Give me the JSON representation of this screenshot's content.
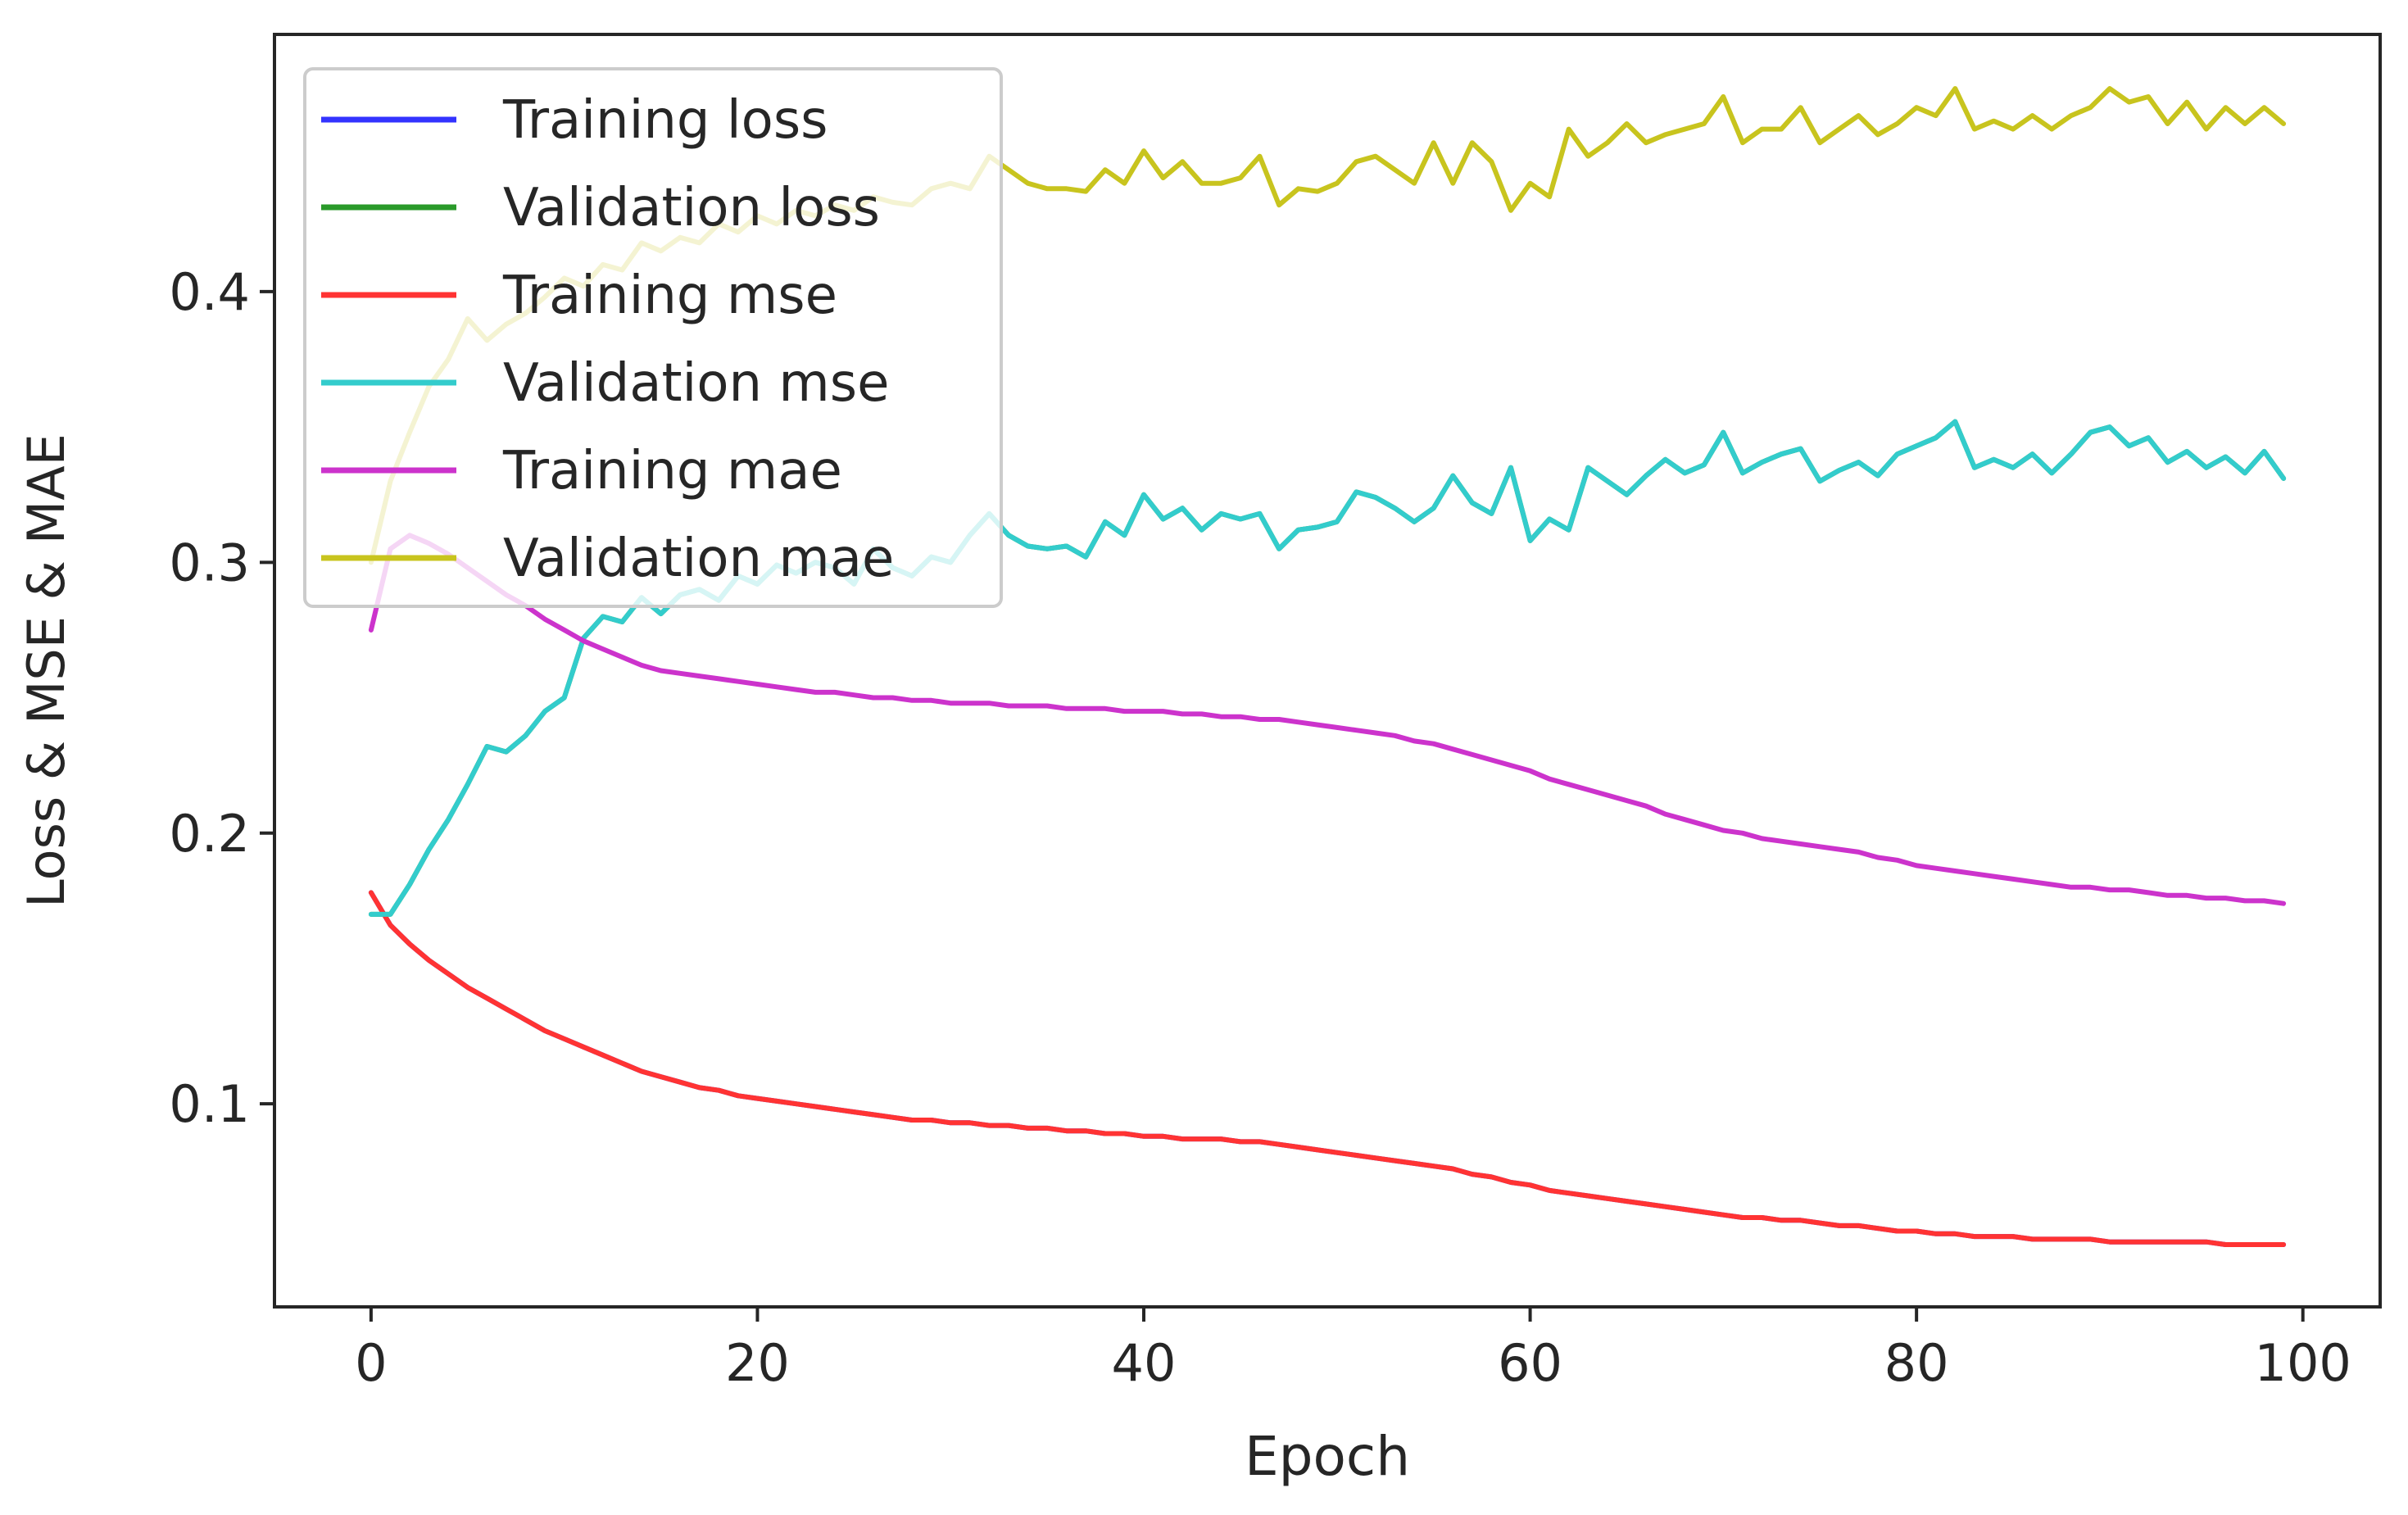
{
  "chart_data": {
    "type": "line",
    "title": "",
    "xlabel": "Epoch",
    "ylabel": "Loss & MSE & MAE",
    "xlim": [
      -5,
      104
    ],
    "ylim": [
      0.025,
      0.495
    ],
    "xticks": [
      0,
      20,
      40,
      60,
      80,
      100
    ],
    "xtick_labels": [
      "0",
      "20",
      "40",
      "60",
      "80",
      "100"
    ],
    "yticks": [
      0.1,
      0.2,
      0.3,
      0.4
    ],
    "ytick_labels": [
      "0.1",
      "0.2",
      "0.3",
      "0.4"
    ],
    "grid": false,
    "legend_position": "top-left",
    "x": [
      0,
      1,
      2,
      3,
      4,
      5,
      6,
      7,
      8,
      9,
      10,
      11,
      12,
      13,
      14,
      15,
      16,
      17,
      18,
      19,
      20,
      21,
      22,
      23,
      24,
      25,
      26,
      27,
      28,
      29,
      30,
      31,
      32,
      33,
      34,
      35,
      36,
      37,
      38,
      39,
      40,
      41,
      42,
      43,
      44,
      45,
      46,
      47,
      48,
      49,
      50,
      51,
      52,
      53,
      54,
      55,
      56,
      57,
      58,
      59,
      60,
      61,
      62,
      63,
      64,
      65,
      66,
      67,
      68,
      69,
      70,
      71,
      72,
      73,
      74,
      75,
      76,
      77,
      78,
      79,
      80,
      81,
      82,
      83,
      84,
      85,
      86,
      87,
      88,
      89,
      90,
      91,
      92,
      93,
      94,
      95,
      96,
      97,
      98,
      99
    ],
    "series": [
      {
        "name": "Training loss",
        "color": "#3333ff",
        "values": [
          0.178,
          0.166,
          0.159,
          0.153,
          0.148,
          0.143,
          0.139,
          0.135,
          0.131,
          0.127,
          0.124,
          0.121,
          0.118,
          0.115,
          0.112,
          0.11,
          0.108,
          0.106,
          0.105,
          0.103,
          0.102,
          0.101,
          0.1,
          0.099,
          0.098,
          0.097,
          0.096,
          0.095,
          0.094,
          0.094,
          0.093,
          0.093,
          0.092,
          0.092,
          0.091,
          0.091,
          0.09,
          0.09,
          0.089,
          0.089,
          0.088,
          0.088,
          0.087,
          0.087,
          0.087,
          0.086,
          0.086,
          0.085,
          0.084,
          0.083,
          0.082,
          0.081,
          0.08,
          0.079,
          0.078,
          0.077,
          0.076,
          0.074,
          0.073,
          0.071,
          0.07,
          0.068,
          0.067,
          0.066,
          0.065,
          0.064,
          0.063,
          0.062,
          0.061,
          0.06,
          0.059,
          0.058,
          0.058,
          0.057,
          0.057,
          0.056,
          0.055,
          0.055,
          0.054,
          0.053,
          0.053,
          0.052,
          0.052,
          0.051,
          0.051,
          0.051,
          0.05,
          0.05,
          0.05,
          0.05,
          0.049,
          0.049,
          0.049,
          0.049,
          0.049,
          0.049,
          0.048,
          0.048,
          0.048,
          0.048
        ]
      },
      {
        "name": "Validation loss",
        "color": "#2a9a2a",
        "values": [
          0.17,
          0.17,
          0.181,
          0.194,
          0.205,
          0.218,
          0.232,
          0.23,
          0.236,
          0.245,
          0.25,
          0.272,
          0.28,
          0.278,
          0.287,
          0.281,
          0.288,
          0.29,
          0.286,
          0.295,
          0.292,
          0.299,
          0.296,
          0.3,
          0.298,
          0.292,
          0.305,
          0.298,
          0.295,
          0.302,
          0.3,
          0.31,
          0.318,
          0.31,
          0.306,
          0.305,
          0.306,
          0.302,
          0.315,
          0.31,
          0.325,
          0.316,
          0.32,
          0.312,
          0.318,
          0.316,
          0.318,
          0.305,
          0.312,
          0.313,
          0.315,
          0.326,
          0.324,
          0.32,
          0.315,
          0.32,
          0.332,
          0.322,
          0.318,
          0.335,
          0.308,
          0.316,
          0.312,
          0.335,
          0.33,
          0.325,
          0.332,
          0.338,
          0.333,
          0.336,
          0.348,
          0.333,
          0.337,
          0.34,
          0.342,
          0.33,
          0.334,
          0.337,
          0.332,
          0.34,
          0.343,
          0.346,
          0.352,
          0.335,
          0.338,
          0.335,
          0.34,
          0.333,
          0.34,
          0.348,
          0.35,
          0.343,
          0.346,
          0.337,
          0.341,
          0.335,
          0.339,
          0.333,
          0.341,
          0.331
        ]
      },
      {
        "name": "Training mse",
        "color": "#ff3333",
        "values": [
          0.178,
          0.166,
          0.159,
          0.153,
          0.148,
          0.143,
          0.139,
          0.135,
          0.131,
          0.127,
          0.124,
          0.121,
          0.118,
          0.115,
          0.112,
          0.11,
          0.108,
          0.106,
          0.105,
          0.103,
          0.102,
          0.101,
          0.1,
          0.099,
          0.098,
          0.097,
          0.096,
          0.095,
          0.094,
          0.094,
          0.093,
          0.093,
          0.092,
          0.092,
          0.091,
          0.091,
          0.09,
          0.09,
          0.089,
          0.089,
          0.088,
          0.088,
          0.087,
          0.087,
          0.087,
          0.086,
          0.086,
          0.085,
          0.084,
          0.083,
          0.082,
          0.081,
          0.08,
          0.079,
          0.078,
          0.077,
          0.076,
          0.074,
          0.073,
          0.071,
          0.07,
          0.068,
          0.067,
          0.066,
          0.065,
          0.064,
          0.063,
          0.062,
          0.061,
          0.06,
          0.059,
          0.058,
          0.058,
          0.057,
          0.057,
          0.056,
          0.055,
          0.055,
          0.054,
          0.053,
          0.053,
          0.052,
          0.052,
          0.051,
          0.051,
          0.051,
          0.05,
          0.05,
          0.05,
          0.05,
          0.049,
          0.049,
          0.049,
          0.049,
          0.049,
          0.049,
          0.048,
          0.048,
          0.048,
          0.048
        ]
      },
      {
        "name": "Validation mse",
        "color": "#33cccc",
        "values": [
          0.17,
          0.17,
          0.181,
          0.194,
          0.205,
          0.218,
          0.232,
          0.23,
          0.236,
          0.245,
          0.25,
          0.272,
          0.28,
          0.278,
          0.287,
          0.281,
          0.288,
          0.29,
          0.286,
          0.295,
          0.292,
          0.299,
          0.296,
          0.3,
          0.298,
          0.292,
          0.305,
          0.298,
          0.295,
          0.302,
          0.3,
          0.31,
          0.318,
          0.31,
          0.306,
          0.305,
          0.306,
          0.302,
          0.315,
          0.31,
          0.325,
          0.316,
          0.32,
          0.312,
          0.318,
          0.316,
          0.318,
          0.305,
          0.312,
          0.313,
          0.315,
          0.326,
          0.324,
          0.32,
          0.315,
          0.32,
          0.332,
          0.322,
          0.318,
          0.335,
          0.308,
          0.316,
          0.312,
          0.335,
          0.33,
          0.325,
          0.332,
          0.338,
          0.333,
          0.336,
          0.348,
          0.333,
          0.337,
          0.34,
          0.342,
          0.33,
          0.334,
          0.337,
          0.332,
          0.34,
          0.343,
          0.346,
          0.352,
          0.335,
          0.338,
          0.335,
          0.34,
          0.333,
          0.34,
          0.348,
          0.35,
          0.343,
          0.346,
          0.337,
          0.341,
          0.335,
          0.339,
          0.333,
          0.341,
          0.331
        ]
      },
      {
        "name": "Training mae",
        "color": "#cc33cc",
        "values": [
          0.275,
          0.305,
          0.31,
          0.307,
          0.303,
          0.298,
          0.293,
          0.288,
          0.284,
          0.279,
          0.275,
          0.271,
          0.268,
          0.265,
          0.262,
          0.26,
          0.259,
          0.258,
          0.257,
          0.256,
          0.255,
          0.254,
          0.253,
          0.252,
          0.252,
          0.251,
          0.25,
          0.25,
          0.249,
          0.249,
          0.248,
          0.248,
          0.248,
          0.247,
          0.247,
          0.247,
          0.246,
          0.246,
          0.246,
          0.245,
          0.245,
          0.245,
          0.244,
          0.244,
          0.243,
          0.243,
          0.242,
          0.242,
          0.241,
          0.24,
          0.239,
          0.238,
          0.237,
          0.236,
          0.234,
          0.233,
          0.231,
          0.229,
          0.227,
          0.225,
          0.223,
          0.22,
          0.218,
          0.216,
          0.214,
          0.212,
          0.21,
          0.207,
          0.205,
          0.203,
          0.201,
          0.2,
          0.198,
          0.197,
          0.196,
          0.195,
          0.194,
          0.193,
          0.191,
          0.19,
          0.188,
          0.187,
          0.186,
          0.185,
          0.184,
          0.183,
          0.182,
          0.181,
          0.18,
          0.18,
          0.179,
          0.179,
          0.178,
          0.177,
          0.177,
          0.176,
          0.176,
          0.175,
          0.175,
          0.174
        ]
      },
      {
        "name": "Validation mae",
        "color": "#c8c41e",
        "values": [
          0.3,
          0.33,
          0.348,
          0.365,
          0.375,
          0.39,
          0.382,
          0.388,
          0.392,
          0.398,
          0.405,
          0.402,
          0.41,
          0.408,
          0.418,
          0.415,
          0.42,
          0.418,
          0.425,
          0.422,
          0.428,
          0.425,
          0.43,
          0.428,
          0.432,
          0.43,
          0.435,
          0.433,
          0.432,
          0.438,
          0.44,
          0.438,
          0.45,
          0.445,
          0.44,
          0.438,
          0.438,
          0.437,
          0.445,
          0.44,
          0.452,
          0.442,
          0.448,
          0.44,
          0.44,
          0.442,
          0.45,
          0.432,
          0.438,
          0.437,
          0.44,
          0.448,
          0.45,
          0.445,
          0.44,
          0.455,
          0.44,
          0.455,
          0.448,
          0.43,
          0.44,
          0.435,
          0.46,
          0.45,
          0.455,
          0.462,
          0.455,
          0.458,
          0.46,
          0.462,
          0.472,
          0.455,
          0.46,
          0.46,
          0.468,
          0.455,
          0.46,
          0.465,
          0.458,
          0.462,
          0.468,
          0.465,
          0.475,
          0.46,
          0.463,
          0.46,
          0.465,
          0.46,
          0.465,
          0.468,
          0.475,
          0.47,
          0.472,
          0.462,
          0.47,
          0.46,
          0.468,
          0.462,
          0.468,
          0.462
        ]
      }
    ]
  }
}
